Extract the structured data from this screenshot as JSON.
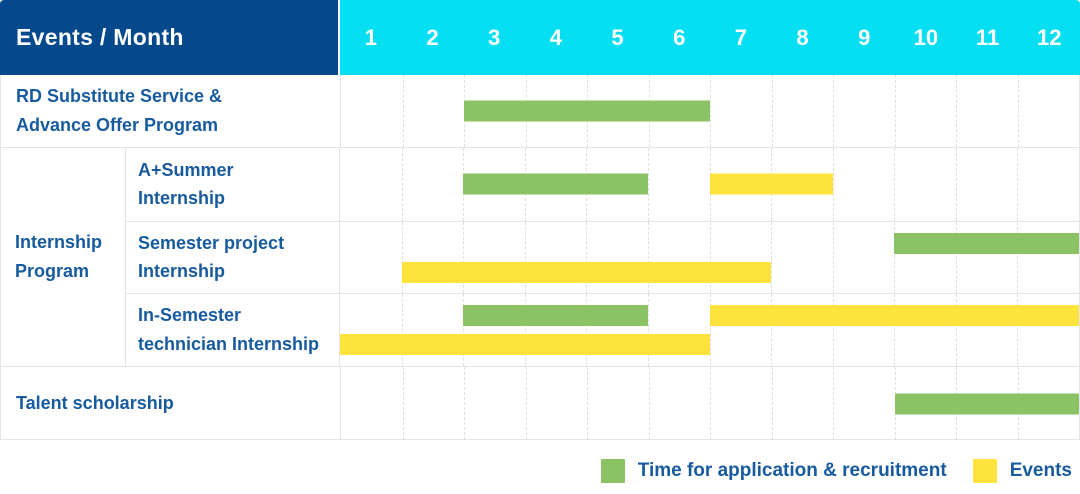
{
  "colors": {
    "navy": "#03498C",
    "cyan": "#06DEF2",
    "green": "#8AC264",
    "yellow": "#FFE33D",
    "label_text_blue": "#175A9E",
    "grid_line": "#E4E4E4"
  },
  "header": {
    "corner_label": "Events / Month"
  },
  "legend": {
    "items": [
      {
        "type": "recruitment",
        "label": "Time for application & recruitment",
        "color": "#8AC264"
      },
      {
        "type": "event",
        "label": "Events",
        "color": "#FFE33D"
      }
    ]
  },
  "chart_data": {
    "type": "gantt",
    "title": "",
    "xlabel": "Month",
    "x_ticks": [
      "1",
      "2",
      "3",
      "4",
      "5",
      "6",
      "7",
      "8",
      "9",
      "10",
      "11",
      "12"
    ],
    "x_range": [
      1,
      12
    ],
    "grid": "vertical-dashed",
    "legend_position": "bottom-right",
    "series_legend": [
      {
        "name": "Time for application & recruitment",
        "color": "#8AC264"
      },
      {
        "name": "Events",
        "color": "#FFE33D"
      }
    ],
    "group_label": "Internship Program",
    "rows": [
      {
        "id": "rd-substitute",
        "group": "",
        "label": "RD Substitute Service &\nAdvance Offer Program",
        "lanes": 1,
        "bars": [
          {
            "type": "recruitment",
            "start_month": 3,
            "end_month": 6,
            "lane": 0
          }
        ]
      },
      {
        "id": "a-summer",
        "group": "Internship\nProgram",
        "label": "A+Summer\nInternship",
        "lanes": 1,
        "bars": [
          {
            "type": "recruitment",
            "start_month": 3,
            "end_month": 5,
            "lane": 0
          },
          {
            "type": "event",
            "start_month": 7,
            "end_month": 8,
            "lane": 0
          }
        ]
      },
      {
        "id": "semester-project",
        "group": "Internship\nProgram",
        "label": "Semester project\nInternship",
        "lanes": 2,
        "bars": [
          {
            "type": "recruitment",
            "start_month": 10,
            "end_month": 12,
            "lane": 0
          },
          {
            "type": "event",
            "start_month": 2,
            "end_month": 7,
            "lane": 1
          }
        ]
      },
      {
        "id": "in-semester",
        "group": "Internship\nProgram",
        "label": "In-Semester\ntechnician Internship",
        "lanes": 2,
        "bars": [
          {
            "type": "recruitment",
            "start_month": 3,
            "end_month": 5,
            "lane": 0
          },
          {
            "type": "event",
            "start_month": 7,
            "end_month": 12,
            "lane": 0
          },
          {
            "type": "event",
            "start_month": 1,
            "end_month": 6,
            "lane": 1
          }
        ]
      },
      {
        "id": "talent-scholarship",
        "group": "",
        "label": "Talent scholarship",
        "lanes": 1,
        "bars": [
          {
            "type": "recruitment",
            "start_month": 10,
            "end_month": 12,
            "lane": 0
          }
        ]
      }
    ]
  }
}
